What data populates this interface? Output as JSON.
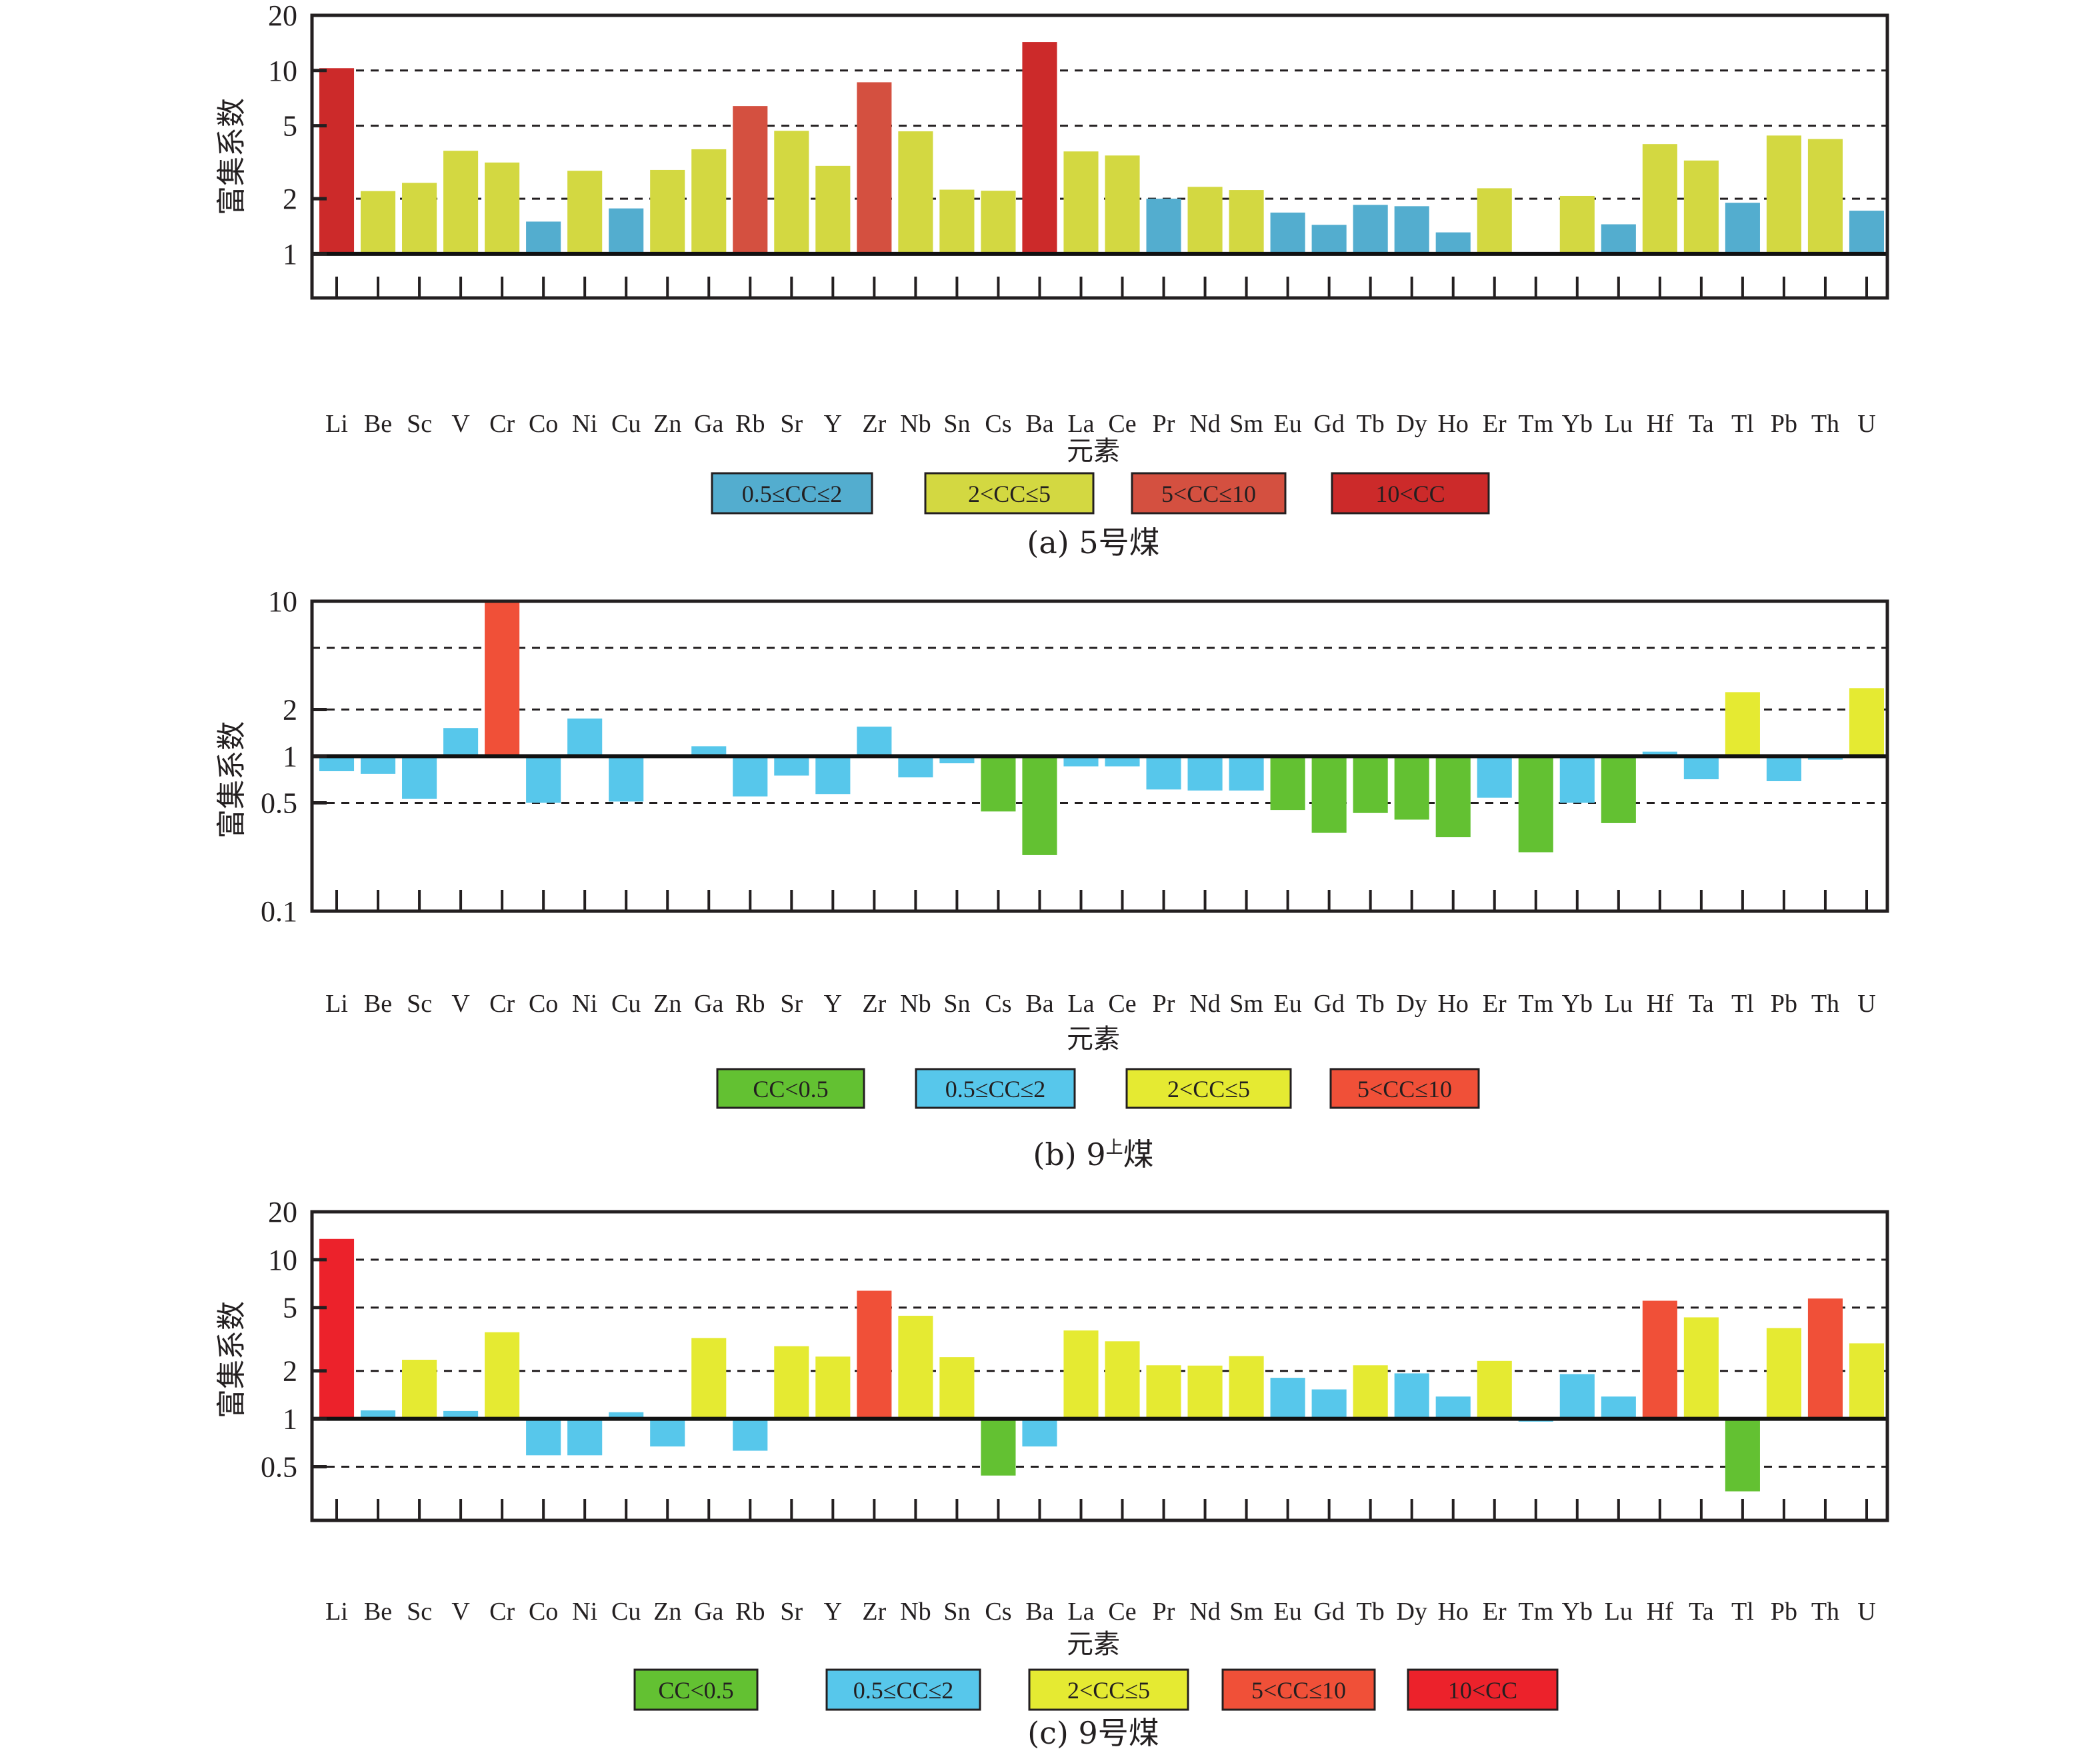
{
  "figure": {
    "elements": [
      "Li",
      "Be",
      "Sc",
      "V",
      "Cr",
      "Co",
      "Ni",
      "Cu",
      "Zn",
      "Ga",
      "Rb",
      "Sr",
      "Y",
      "Zr",
      "Nb",
      "Sn",
      "Cs",
      "Ba",
      "La",
      "Ce",
      "Pr",
      "Nd",
      "Sm",
      "Eu",
      "Gd",
      "Tb",
      "Dy",
      "Ho",
      "Er",
      "Tm",
      "Yb",
      "Lu",
      "Hf",
      "Ta",
      "Tl",
      "Pb",
      "Th",
      "U"
    ]
  },
  "chart_data": [
    {
      "id": "a",
      "type": "bar",
      "scale": "log",
      "baseline": 1,
      "title": "(a) 5号煤",
      "caption_prefix": "(a) 5",
      "caption_sup": "",
      "caption_suffix": "号煤",
      "xlabel": "元素",
      "ylabel": "富集系数",
      "ylim": [
        0.575,
        20
      ],
      "yticks": [
        1,
        2,
        5,
        10,
        20
      ],
      "ytick_labels": [
        "1",
        "2",
        "5",
        "10",
        "20"
      ],
      "gridlines": [
        2,
        5,
        10
      ],
      "grid": true,
      "legend_position": "bottom",
      "legend": [
        {
          "label": "0.5≤CC≤2",
          "color": "#53ADCF",
          "min": 0.5,
          "max": 2
        },
        {
          "label": "2<CC≤5",
          "color": "#D3D841",
          "min": 2,
          "max": 5
        },
        {
          "label": "5<CC≤10",
          "color": "#D45040",
          "min": 5,
          "max": 10
        },
        {
          "label": "10<CC",
          "color": "#CC2A2A",
          "min": 10,
          "max": 1000
        }
      ],
      "categories": [
        "Li",
        "Be",
        "Sc",
        "V",
        "Cr",
        "Co",
        "Ni",
        "Cu",
        "Zn",
        "Ga",
        "Rb",
        "Sr",
        "Y",
        "Zr",
        "Nb",
        "Sn",
        "Cs",
        "Ba",
        "La",
        "Ce",
        "Pr",
        "Nd",
        "Sm",
        "Eu",
        "Gd",
        "Tb",
        "Dy",
        "Ho",
        "Er",
        "Tm",
        "Yb",
        "Lu",
        "Hf",
        "Ta",
        "Tl",
        "Pb",
        "Th",
        "U"
      ],
      "values": [
        10.3,
        2.2,
        2.44,
        3.65,
        3.15,
        1.5,
        2.84,
        1.77,
        2.87,
        3.72,
        6.4,
        4.69,
        3.02,
        8.63,
        4.66,
        2.24,
        2.21,
        14.3,
        3.62,
        3.44,
        2.0,
        2.32,
        2.23,
        1.68,
        1.44,
        1.85,
        1.82,
        1.31,
        2.28,
        1.0,
        2.07,
        1.45,
        3.97,
        3.23,
        1.9,
        4.42,
        4.23,
        1.72
      ]
    },
    {
      "id": "b",
      "type": "bar",
      "scale": "log",
      "baseline": 1,
      "title": "(b) 9上煤",
      "caption_prefix": "(b) 9",
      "caption_sup": "上",
      "caption_suffix": "煤",
      "xlabel": "元素",
      "ylabel": "富集系数",
      "ylim": [
        0.1,
        10
      ],
      "yticks": [
        0.1,
        0.5,
        1,
        2,
        10
      ],
      "ytick_labels": [
        "0.1",
        "0.5",
        "1",
        "2",
        "10"
      ],
      "gridlines": [
        0.5,
        2,
        5
      ],
      "grid": true,
      "legend_position": "bottom",
      "legend": [
        {
          "label": "CC<0.5",
          "color": "#63C132",
          "min": 0,
          "max": 0.5
        },
        {
          "label": "0.5≤CC≤2",
          "color": "#57C7EB",
          "min": 0.5,
          "max": 2
        },
        {
          "label": "2<CC≤5",
          "color": "#E5EA32",
          "min": 2,
          "max": 5
        },
        {
          "label": "5<CC≤10",
          "color": "#F05038",
          "min": 5,
          "max": 1000
        }
      ],
      "categories": [
        "Li",
        "Be",
        "Sc",
        "V",
        "Cr",
        "Co",
        "Ni",
        "Cu",
        "Zn",
        "Ga",
        "Rb",
        "Sr",
        "Y",
        "Zr",
        "Nb",
        "Sn",
        "Cs",
        "Ba",
        "La",
        "Ce",
        "Pr",
        "Nd",
        "Sm",
        "Eu",
        "Gd",
        "Tb",
        "Dy",
        "Ho",
        "Er",
        "Tm",
        "Yb",
        "Lu",
        "Hf",
        "Ta",
        "Tl",
        "Pb",
        "Th",
        "U"
      ],
      "values": [
        0.8,
        0.77,
        0.53,
        1.52,
        10.0,
        0.5,
        1.75,
        0.51,
        1.01,
        1.16,
        0.55,
        0.75,
        0.57,
        1.55,
        0.73,
        0.9,
        0.44,
        0.23,
        0.86,
        0.86,
        0.61,
        0.6,
        0.6,
        0.45,
        0.32,
        0.43,
        0.39,
        0.3,
        0.54,
        0.24,
        0.5,
        0.37,
        1.07,
        0.71,
        2.59,
        0.69,
        0.95,
        2.75
      ]
    },
    {
      "id": "c",
      "type": "bar",
      "scale": "log",
      "baseline": 1,
      "title": "(c) 9号煤",
      "caption_prefix": "(c) 9",
      "caption_sup": "",
      "caption_suffix": "号煤",
      "xlabel": "元素",
      "ylabel": "富集系数",
      "ylim": [
        0.23,
        20
      ],
      "yticks": [
        0.5,
        1,
        2,
        5,
        10,
        20
      ],
      "ytick_labels": [
        "0.5",
        "1",
        "2",
        "5",
        "10",
        "20"
      ],
      "gridlines": [
        0.5,
        2,
        5,
        10
      ],
      "grid": true,
      "legend_position": "bottom",
      "legend": [
        {
          "label": "CC<0.5",
          "color": "#63C132",
          "min": 0,
          "max": 0.5
        },
        {
          "label": "0.5≤CC≤2",
          "color": "#57C7EB",
          "min": 0.5,
          "max": 2
        },
        {
          "label": "2<CC≤5",
          "color": "#E5EA32",
          "min": 2,
          "max": 5
        },
        {
          "label": "5<CC≤10",
          "color": "#F05038",
          "min": 5,
          "max": 10
        },
        {
          "label": "10<CC",
          "color": "#EC222B",
          "min": 10,
          "max": 1000
        }
      ],
      "categories": [
        "Li",
        "Be",
        "Sc",
        "V",
        "Cr",
        "Co",
        "Ni",
        "Cu",
        "Zn",
        "Ga",
        "Rb",
        "Sr",
        "Y",
        "Zr",
        "Nb",
        "Sn",
        "Cs",
        "Ba",
        "La",
        "Ce",
        "Pr",
        "Nd",
        "Sm",
        "Eu",
        "Gd",
        "Tb",
        "Dy",
        "Ho",
        "Er",
        "Tm",
        "Yb",
        "Lu",
        "Hf",
        "Ta",
        "Tl",
        "Pb",
        "Th",
        "U"
      ],
      "values": [
        13.5,
        1.13,
        2.35,
        1.12,
        3.5,
        0.59,
        0.59,
        1.1,
        0.67,
        3.22,
        0.63,
        2.86,
        2.46,
        6.38,
        4.44,
        2.44,
        0.44,
        0.67,
        3.59,
        3.07,
        2.17,
        2.16,
        2.48,
        1.81,
        1.53,
        2.17,
        1.93,
        1.38,
        2.31,
        0.96,
        1.91,
        1.38,
        5.52,
        4.34,
        0.35,
        3.72,
        5.7,
        2.98
      ]
    }
  ]
}
